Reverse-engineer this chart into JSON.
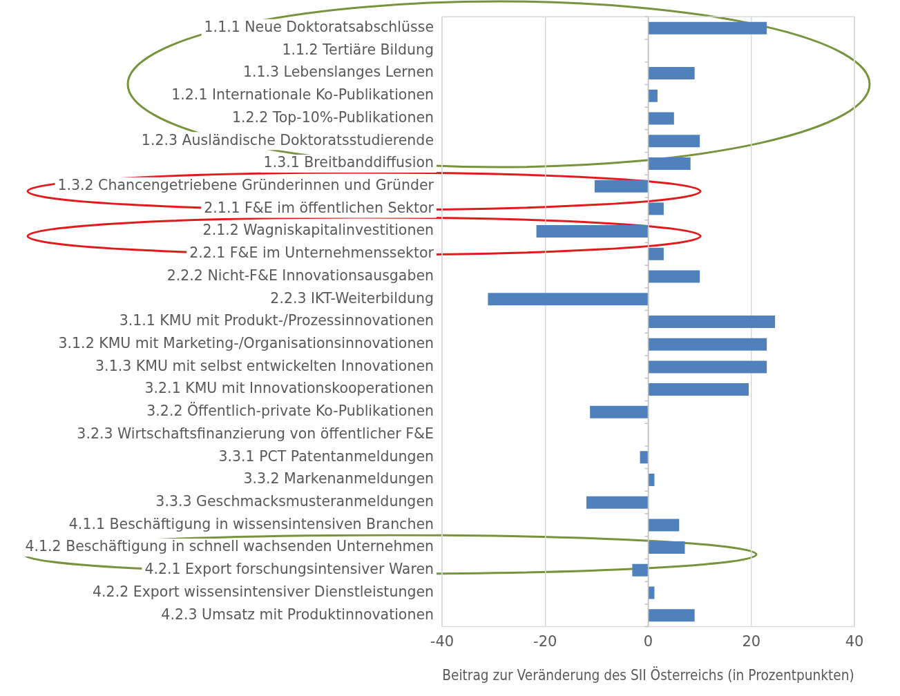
{
  "chart_data": {
    "type": "bar",
    "orientation": "horizontal",
    "xlabel": "Beitrag zur Veränderung des SII Österreichs (in Prozentpunkten)",
    "categories": [
      "1.1.1 Neue Doktoratsabschlüsse",
      "1.1.2 Tertiäre Bildung",
      "1.1.3 Lebenslanges Lernen",
      "1.2.1 Internationale Ko-Publikationen",
      "1.2.2 Top-10%-Publikationen",
      "1.2.3 Ausländische Doktoratsstudierende",
      "1.3.1 Breitbanddiffusion",
      "1.3.2 Chancengetriebene Gründerinnen und Gründer",
      "2.1.1 F&E im öffentlichen Sektor",
      "2.1.2 Wagniskapitalinvestitionen",
      "2.2.1 F&E im Unternehmenssektor",
      "2.2.2 Nicht-F&E Innovationsausgaben",
      "2.2.3 IKT-Weiterbildung",
      "3.1.1 KMU mit Produkt-/Prozessinnovationen",
      "3.1.2 KMU mit Marketing-/Organisationsinnovationen",
      "3.1.3 KMU mit selbst entwickelten Innovationen",
      "3.2.1 KMU mit Innovationskooperationen",
      "3.2.2 Öffentlich-private Ko-Publikationen",
      "3.2.3 Wirtschaftsfinanzierung von öffentlicher F&E",
      "3.3.1 PCT Patentanmeldungen",
      "3.3.2 Markenanmeldungen",
      "3.3.3 Geschmacksmusteranmeldungen",
      "4.1.1 Beschäftigung in wissensintensiven Branchen",
      "4.1.2 Beschäftigung in schnell wachsenden Unternehmen",
      "4.2.1 Export forschungsintensiver Waren",
      "4.2.2 Export wissensintensiver Dienstleistungen",
      "4.2.3 Umsatz mit Produktinnovationen"
    ],
    "values": [
      23,
      0,
      9,
      1.8,
      5,
      10,
      8.2,
      -10.4,
      3,
      -21.7,
      3,
      10,
      -31.1,
      24.6,
      23,
      23,
      19.5,
      -11.3,
      0,
      -1.6,
      1.2,
      -12,
      6,
      7.1,
      -3.1,
      1.2,
      9
    ],
    "color": "#4f81bd",
    "xlim": [
      -40,
      40
    ],
    "xticks": [
      -40,
      -20,
      0,
      20,
      40
    ],
    "grid": "x"
  }
}
